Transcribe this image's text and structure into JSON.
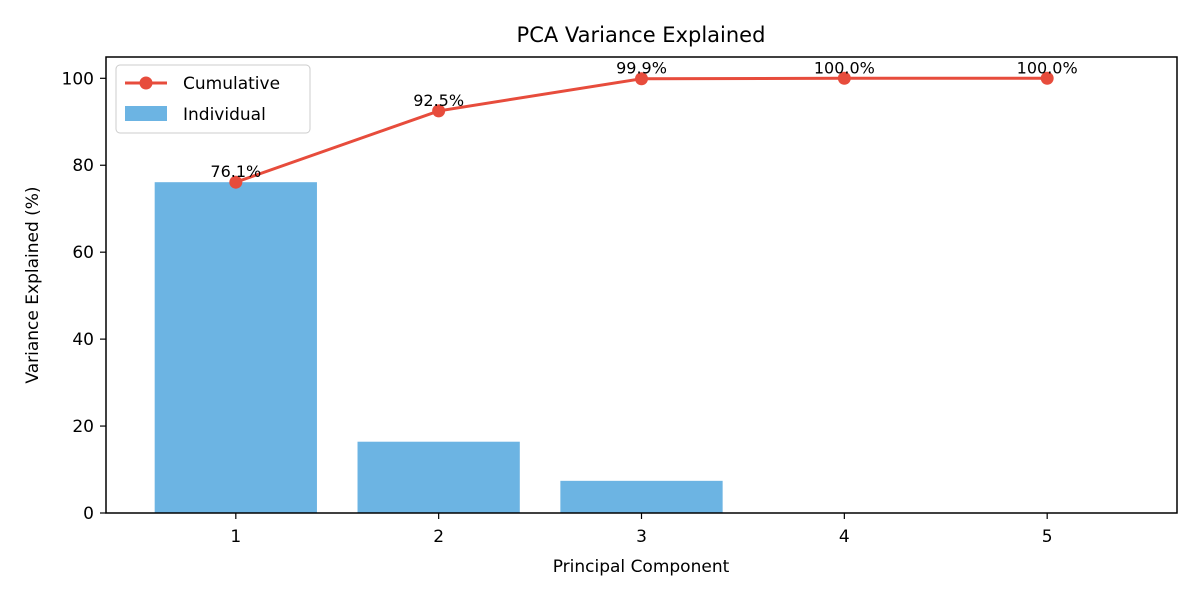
{
  "chart_data": {
    "type": "bar+line",
    "title": "PCA Variance Explained",
    "xlabel": "Principal Component",
    "ylabel": "Variance Explained (%)",
    "categories": [
      "1",
      "2",
      "3",
      "4",
      "5"
    ],
    "x": [
      1,
      2,
      3,
      4,
      5
    ],
    "xlim": [
      0.36,
      5.64
    ],
    "ylim": [
      0,
      104.9
    ],
    "yticks": [
      0,
      20,
      40,
      60,
      80,
      100
    ],
    "grid": false,
    "legend_placement": "top-left",
    "series": [
      {
        "name": "Cumulative",
        "type": "line",
        "color": "#e74c3c",
        "values": [
          76.1,
          92.5,
          99.9,
          100.0,
          100.0
        ],
        "data_labels": [
          "76.1%",
          "92.5%",
          "99.9%",
          "100.0%",
          "100.0%"
        ]
      },
      {
        "name": "Individual",
        "type": "bar",
        "color": "#6cb4e3",
        "values": [
          76.1,
          16.4,
          7.4,
          0.1,
          0.0
        ]
      }
    ]
  }
}
